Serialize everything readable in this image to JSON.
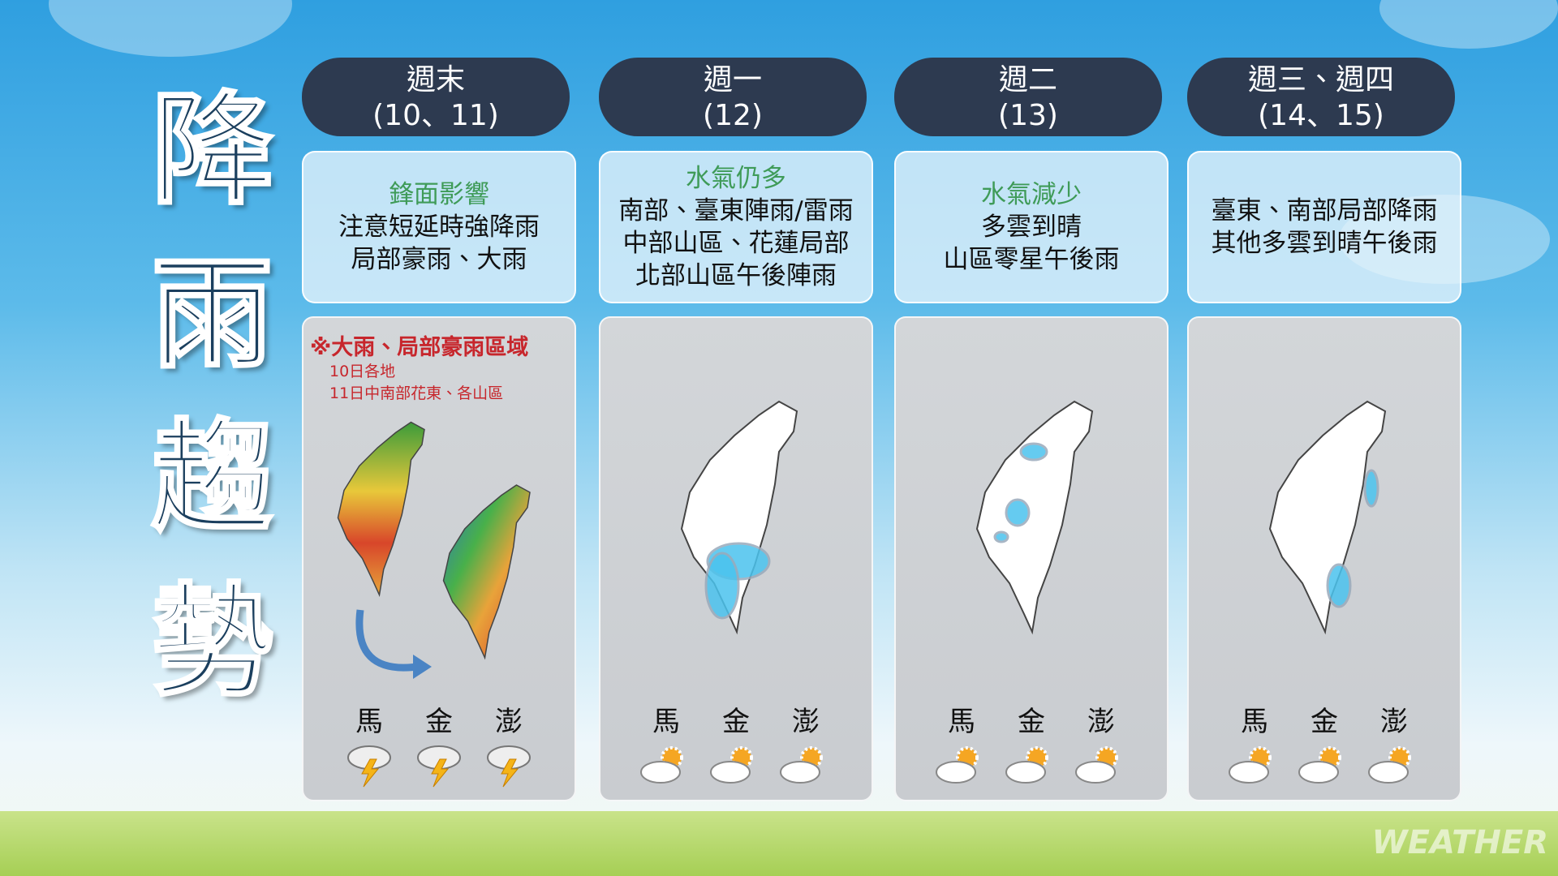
{
  "title": "降雨趨勢",
  "columns": [
    {
      "header": [
        "週末",
        "(10、11)"
      ],
      "summary_title": "鋒面影響",
      "summary": [
        "注意短延時強降雨",
        "局部豪雨、大雨"
      ],
      "map_note": {
        "title": "※大雨、局部豪雨區域",
        "lines": [
          "10日各地",
          "11日中南部花東、各山區"
        ]
      },
      "islands": [
        "馬",
        "金",
        "澎"
      ],
      "weather": "thunderstorm"
    },
    {
      "header": [
        "週一",
        "(12)"
      ],
      "summary_title": "水氣仍多",
      "summary": [
        "南部、臺東陣雨/雷雨",
        "中部山區、花蓮局部",
        "北部山區午後陣雨"
      ],
      "islands": [
        "馬",
        "金",
        "澎"
      ],
      "weather": "partly-sunny"
    },
    {
      "header": [
        "週二",
        "(13)"
      ],
      "summary_title": "水氣減少",
      "summary": [
        "多雲到晴",
        "山區零星午後雨"
      ],
      "islands": [
        "馬",
        "金",
        "澎"
      ],
      "weather": "partly-sunny"
    },
    {
      "header": [
        "週三、週四",
        "(14、15)"
      ],
      "summary": [
        "臺東、南部局部降雨",
        "其他多雲到晴午後雨"
      ],
      "islands": [
        "馬",
        "金",
        "澎"
      ],
      "weather": "partly-sunny"
    }
  ],
  "watermark": "WEATHER"
}
